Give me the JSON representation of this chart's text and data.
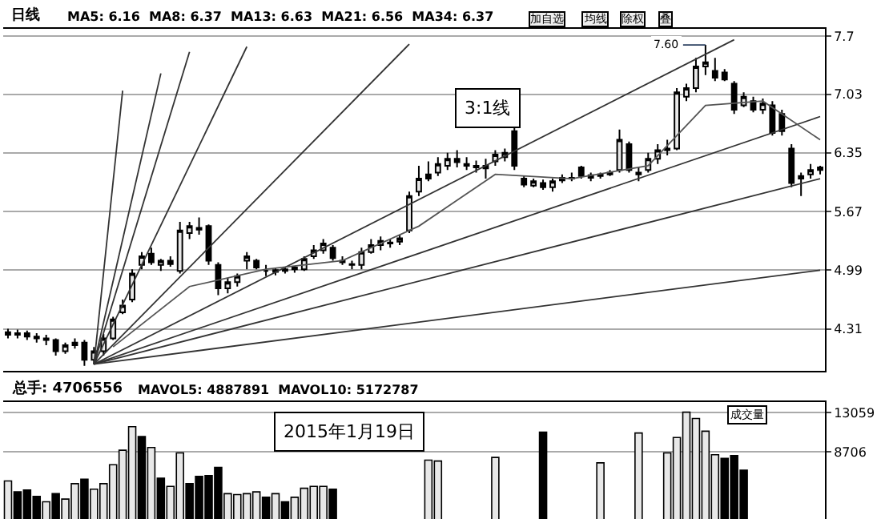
{
  "chart_data": [
    {
      "type": "candlestick",
      "title": "日线",
      "subtitle": "MA5: 6.16  MA8: 6.37  MA13: 6.63  MA21: 6.56  MA34: 6.37",
      "categories": [
        null,
        null,
        null,
        null,
        null,
        null,
        null,
        null,
        null,
        null,
        null,
        null,
        null,
        null,
        null,
        null,
        null,
        null,
        null,
        null,
        null,
        null,
        null,
        null,
        null,
        null,
        null,
        null,
        null,
        null,
        null,
        null,
        null,
        null,
        null,
        null,
        null,
        null,
        null,
        null,
        null,
        null,
        null,
        null,
        null,
        null,
        null,
        null,
        null,
        null,
        null,
        null,
        null,
        null,
        null,
        null,
        null,
        null,
        null,
        null,
        null,
        null,
        null,
        null,
        null,
        null,
        null,
        null,
        null,
        null,
        null,
        null,
        null,
        null,
        null,
        null,
        null,
        null,
        null,
        null,
        null,
        null,
        null,
        null,
        null,
        null
      ],
      "ohlc": [
        [
          4.27,
          4.31,
          4.2,
          4.24
        ],
        [
          4.24,
          4.3,
          4.2,
          4.26
        ],
        [
          4.26,
          4.29,
          4.18,
          4.22
        ],
        [
          4.22,
          4.26,
          4.15,
          4.2
        ],
        [
          4.2,
          4.24,
          4.12,
          4.18
        ],
        [
          4.18,
          4.2,
          4.0,
          4.05
        ],
        [
          4.05,
          4.15,
          4.02,
          4.12
        ],
        [
          4.12,
          4.2,
          4.08,
          4.15
        ],
        [
          4.15,
          4.18,
          3.88,
          3.95
        ],
        [
          3.95,
          4.1,
          3.9,
          4.05
        ],
        [
          4.05,
          4.25,
          4.0,
          4.2
        ],
        [
          4.2,
          4.45,
          4.18,
          4.42
        ],
        [
          4.5,
          4.65,
          4.48,
          4.58
        ],
        [
          4.65,
          5.0,
          4.62,
          4.95
        ],
        [
          5.05,
          5.2,
          5.0,
          5.15
        ],
        [
          5.18,
          5.25,
          5.05,
          5.08
        ],
        [
          5.05,
          5.12,
          4.98,
          5.1
        ],
        [
          5.1,
          5.15,
          5.03,
          5.06
        ],
        [
          4.98,
          5.55,
          4.95,
          5.45
        ],
        [
          5.42,
          5.55,
          5.35,
          5.5
        ],
        [
          5.48,
          5.6,
          5.4,
          5.46
        ],
        [
          5.5,
          5.52,
          5.05,
          5.1
        ],
        [
          5.05,
          5.08,
          4.7,
          4.78
        ],
        [
          4.78,
          4.9,
          4.72,
          4.85
        ],
        [
          4.85,
          4.95,
          4.8,
          4.92
        ],
        [
          5.1,
          5.2,
          5.0,
          5.15
        ],
        [
          5.1,
          5.12,
          5.0,
          5.02
        ],
        [
          4.98,
          5.05,
          4.92,
          4.98
        ],
        [
          4.97,
          5.02,
          4.93,
          4.99
        ],
        [
          4.98,
          5.03,
          4.95,
          5.0
        ],
        [
          5.0,
          5.04,
          4.96,
          5.02
        ],
        [
          5.0,
          5.15,
          4.98,
          5.12
        ],
        [
          5.15,
          5.28,
          5.12,
          5.22
        ],
        [
          5.22,
          5.35,
          5.18,
          5.3
        ],
        [
          5.25,
          5.28,
          5.1,
          5.13
        ],
        [
          5.1,
          5.15,
          5.05,
          5.08
        ],
        [
          5.05,
          5.1,
          5.0,
          5.06
        ],
        [
          5.05,
          5.25,
          5.0,
          5.2
        ],
        [
          5.2,
          5.35,
          5.18,
          5.28
        ],
        [
          5.28,
          5.38,
          5.22,
          5.33
        ],
        [
          5.3,
          5.35,
          5.25,
          5.31
        ],
        [
          5.32,
          5.4,
          5.28,
          5.36
        ],
        [
          5.45,
          5.9,
          5.42,
          5.85
        ],
        [
          5.9,
          6.2,
          5.85,
          6.05
        ],
        [
          6.1,
          6.25,
          6.02,
          6.05
        ],
        [
          6.12,
          6.3,
          6.08,
          6.22
        ],
        [
          6.2,
          6.35,
          6.15,
          6.28
        ],
        [
          6.28,
          6.38,
          6.18,
          6.24
        ],
        [
          6.2,
          6.3,
          6.15,
          6.22
        ],
        [
          6.18,
          6.26,
          6.12,
          6.2
        ],
        [
          6.2,
          6.28,
          6.05,
          6.17
        ],
        [
          6.25,
          6.38,
          6.2,
          6.33
        ],
        [
          6.3,
          6.4,
          6.25,
          6.35
        ],
        [
          6.6,
          6.66,
          6.15,
          6.2
        ],
        [
          6.05,
          6.08,
          5.95,
          5.98
        ],
        [
          5.97,
          6.05,
          5.95,
          6.02
        ],
        [
          6.0,
          6.04,
          5.92,
          5.95
        ],
        [
          5.95,
          6.05,
          5.9,
          6.02
        ],
        [
          6.03,
          6.1,
          6.0,
          6.06
        ],
        [
          6.06,
          6.12,
          6.02,
          6.05
        ],
        [
          6.18,
          6.2,
          6.05,
          6.08
        ],
        [
          6.06,
          6.12,
          6.02,
          6.09
        ],
        [
          6.08,
          6.12,
          6.05,
          6.1
        ],
        [
          6.1,
          6.15,
          6.08,
          6.12
        ],
        [
          6.15,
          6.62,
          6.12,
          6.5
        ],
        [
          6.45,
          6.48,
          6.12,
          6.15
        ],
        [
          6.1,
          6.18,
          6.02,
          6.12
        ],
        [
          6.15,
          6.35,
          6.12,
          6.28
        ],
        [
          6.28,
          6.45,
          6.22,
          6.38
        ],
        [
          6.38,
          6.5,
          6.32,
          6.4
        ],
        [
          6.4,
          7.1,
          6.38,
          7.05
        ],
        [
          7.0,
          7.15,
          6.95,
          7.1
        ],
        [
          7.1,
          7.45,
          7.05,
          7.35
        ],
        [
          7.35,
          7.6,
          7.25,
          7.4
        ],
        [
          7.3,
          7.45,
          7.18,
          7.22
        ],
        [
          7.28,
          7.32,
          7.18,
          7.2
        ],
        [
          7.15,
          7.18,
          6.8,
          6.85
        ],
        [
          6.9,
          7.05,
          6.88,
          7.0
        ],
        [
          6.95,
          7.0,
          6.82,
          6.85
        ],
        [
          6.85,
          6.98,
          6.8,
          6.92
        ],
        [
          6.9,
          6.95,
          6.55,
          6.58
        ],
        [
          6.8,
          6.85,
          6.55,
          6.6
        ],
        [
          6.4,
          6.45,
          5.95,
          6.0
        ],
        [
          6.05,
          6.12,
          5.85,
          6.08
        ],
        [
          6.1,
          6.22,
          6.05,
          6.15
        ],
        [
          6.15,
          6.2,
          6.1,
          6.18
        ]
      ],
      "series": [
        {
          "type": "line",
          "color": "#333333",
          "values": [
            null,
            null,
            null,
            null,
            null,
            null,
            null,
            null,
            null,
            3.9,
            null,
            null,
            7.07,
            null,
            null,
            null,
            null,
            null,
            null,
            null,
            null,
            null,
            null,
            null,
            null,
            null,
            null,
            null,
            null,
            null,
            null,
            null,
            null,
            null,
            null,
            null,
            null,
            null,
            null,
            null,
            null,
            null,
            null,
            null,
            null,
            null,
            null,
            null,
            null,
            null,
            null,
            null,
            null,
            null,
            null,
            null,
            null,
            null,
            null,
            null,
            null,
            null,
            null,
            null,
            null,
            null,
            null,
            null,
            null,
            null,
            null,
            null,
            null,
            null,
            null,
            null,
            null,
            null,
            null,
            null,
            null,
            null,
            null,
            null,
            null,
            null
          ]
        },
        {
          "type": "line",
          "color": "#333333",
          "values": [
            null,
            null,
            null,
            null,
            null,
            null,
            null,
            null,
            null,
            3.9,
            null,
            null,
            null,
            null,
            null,
            null,
            7.27,
            null,
            null,
            null,
            null,
            null,
            null,
            null,
            null,
            null,
            null,
            null,
            null,
            null,
            null,
            null,
            null,
            null,
            null,
            null,
            null,
            null,
            null,
            null,
            null,
            null,
            null,
            null,
            null,
            null,
            null,
            null,
            null,
            null,
            null,
            null,
            null,
            null,
            null,
            null,
            null,
            null,
            null,
            null,
            null,
            null,
            null,
            null,
            null,
            null,
            null,
            null,
            null,
            null,
            null,
            null,
            null,
            null,
            null,
            null,
            null,
            null,
            null,
            null,
            null,
            null,
            null,
            null,
            null,
            null
          ]
        },
        {
          "type": "line",
          "color": "#333333",
          "values": [
            null,
            null,
            null,
            null,
            null,
            null,
            null,
            null,
            null,
            3.9,
            null,
            null,
            null,
            null,
            null,
            null,
            null,
            null,
            null,
            7.52,
            null,
            null,
            null,
            null,
            null,
            null,
            null,
            null,
            null,
            null,
            null,
            null,
            null,
            null,
            null,
            null,
            null,
            null,
            null,
            null,
            null,
            null,
            null,
            null,
            null,
            null,
            null,
            null,
            null,
            null,
            null,
            null,
            null,
            null,
            null,
            null,
            null,
            null,
            null,
            null,
            null,
            null,
            null,
            null,
            null,
            null,
            null,
            null,
            null,
            null,
            null,
            null,
            null,
            null,
            null,
            null,
            null,
            null,
            null,
            null,
            null,
            null,
            null,
            null,
            null,
            null
          ]
        },
        {
          "type": "line",
          "color": "#333333",
          "values": [
            null,
            null,
            null,
            null,
            null,
            null,
            null,
            null,
            null,
            3.9,
            null,
            null,
            null,
            null,
            null,
            null,
            null,
            null,
            null,
            null,
            null,
            null,
            null,
            null,
            null,
            7.58,
            null,
            null,
            null,
            null,
            null,
            null,
            null,
            null,
            null,
            null,
            null,
            null,
            null,
            null,
            null,
            null,
            null,
            null,
            null,
            null,
            null,
            null,
            null,
            null,
            null,
            null,
            null,
            null,
            null,
            null,
            null,
            null,
            null,
            null,
            null,
            null,
            null,
            null,
            null,
            null,
            null,
            null,
            null,
            null,
            null,
            null,
            null,
            null,
            null,
            null,
            null,
            null,
            null,
            null,
            null,
            null,
            null,
            null,
            null,
            null
          ]
        },
        {
          "type": "line",
          "color": "#333333",
          "values": [
            null,
            null,
            null,
            null,
            null,
            null,
            null,
            null,
            null,
            3.9,
            null,
            null,
            null,
            null,
            null,
            null,
            null,
            null,
            null,
            null,
            null,
            null,
            null,
            null,
            null,
            null,
            null,
            null,
            null,
            null,
            null,
            null,
            null,
            null,
            null,
            null,
            null,
            null,
            null,
            null,
            null,
            null,
            7.61,
            null,
            null,
            null,
            null,
            null,
            null,
            null,
            null,
            null,
            null,
            null,
            null,
            null,
            null,
            null,
            null,
            null,
            null,
            null,
            null,
            null,
            null,
            null,
            null,
            null,
            null,
            null,
            null,
            null,
            null,
            null,
            null,
            null,
            null,
            null,
            null,
            null,
            null,
            null,
            null,
            null,
            null,
            null
          ]
        },
        {
          "type": "line",
          "color": "#333333",
          "values": [
            null,
            null,
            null,
            null,
            null,
            null,
            null,
            null,
            null,
            3.9,
            null,
            null,
            null,
            null,
            null,
            null,
            null,
            null,
            null,
            null,
            null,
            null,
            null,
            null,
            null,
            null,
            null,
            null,
            null,
            null,
            null,
            null,
            null,
            null,
            null,
            null,
            null,
            null,
            null,
            null,
            null,
            null,
            null,
            null,
            null,
            null,
            null,
            null,
            null,
            null,
            null,
            null,
            null,
            null,
            null,
            null,
            null,
            null,
            null,
            null,
            null,
            null,
            null,
            null,
            null,
            null,
            null,
            null,
            null,
            null,
            null,
            null,
            null,
            null,
            null,
            null,
            7.66,
            null,
            null,
            null,
            null,
            null,
            null,
            null,
            null,
            null
          ]
        },
        {
          "type": "line",
          "color": "#333333",
          "values": [
            null,
            null,
            null,
            null,
            null,
            null,
            null,
            null,
            null,
            3.9,
            null,
            null,
            null,
            null,
            null,
            null,
            null,
            null,
            null,
            null,
            null,
            null,
            null,
            null,
            null,
            null,
            null,
            null,
            null,
            null,
            null,
            null,
            null,
            null,
            null,
            null,
            null,
            null,
            null,
            null,
            null,
            null,
            null,
            null,
            null,
            null,
            null,
            null,
            null,
            null,
            null,
            null,
            null,
            null,
            null,
            null,
            null,
            null,
            null,
            null,
            null,
            null,
            null,
            null,
            null,
            null,
            null,
            null,
            null,
            null,
            null,
            null,
            null,
            null,
            null,
            null,
            null,
            null,
            null,
            null,
            null,
            null,
            null,
            null,
            null,
            6.77
          ]
        },
        {
          "type": "line",
          "color": "#333333",
          "values": [
            null,
            null,
            null,
            null,
            null,
            null,
            null,
            null,
            null,
            3.9,
            null,
            null,
            null,
            null,
            null,
            null,
            null,
            null,
            null,
            null,
            null,
            null,
            null,
            null,
            null,
            null,
            null,
            null,
            null,
            null,
            null,
            null,
            null,
            null,
            null,
            null,
            null,
            null,
            null,
            null,
            null,
            null,
            null,
            null,
            null,
            null,
            null,
            null,
            null,
            null,
            null,
            null,
            null,
            null,
            null,
            null,
            null,
            null,
            null,
            null,
            null,
            null,
            null,
            null,
            null,
            null,
            null,
            null,
            null,
            null,
            null,
            null,
            null,
            null,
            null,
            null,
            null,
            null,
            null,
            null,
            null,
            null,
            null,
            null,
            null,
            6.05
          ]
        },
        {
          "type": "line",
          "color": "#333333",
          "values": [
            null,
            null,
            null,
            null,
            null,
            null,
            null,
            null,
            null,
            3.9,
            null,
            null,
            null,
            null,
            null,
            null,
            null,
            null,
            null,
            null,
            null,
            null,
            null,
            null,
            null,
            null,
            null,
            null,
            null,
            null,
            null,
            null,
            null,
            null,
            null,
            null,
            null,
            null,
            null,
            null,
            null,
            null,
            null,
            null,
            null,
            null,
            null,
            null,
            null,
            null,
            null,
            null,
            null,
            null,
            null,
            null,
            null,
            null,
            null,
            null,
            null,
            null,
            null,
            null,
            null,
            null,
            null,
            null,
            null,
            null,
            null,
            null,
            null,
            null,
            null,
            null,
            null,
            null,
            null,
            null,
            null,
            null,
            null,
            null,
            null,
            4.99
          ]
        },
        {
          "type": "line",
          "color": "#555555",
          "values": [
            null,
            null,
            null,
            null,
            null,
            null,
            null,
            null,
            null,
            null,
            null,
            4.1,
            null,
            null,
            null,
            null,
            null,
            null,
            null,
            4.8,
            null,
            null,
            null,
            null,
            null,
            null,
            null,
            5.0,
            null,
            null,
            null,
            null,
            null,
            null,
            null,
            5.1,
            null,
            null,
            null,
            null,
            null,
            null,
            null,
            5.5,
            null,
            null,
            null,
            null,
            null,
            null,
            null,
            6.1,
            null,
            null,
            null,
            null,
            null,
            null,
            null,
            6.05,
            null,
            null,
            null,
            null,
            null,
            null,
            null,
            6.2,
            null,
            null,
            null,
            null,
            null,
            6.9,
            null,
            null,
            null,
            null,
            null,
            6.95,
            null,
            null,
            null,
            null,
            null,
            6.5
          ]
        }
      ],
      "ylim": [
        3.82,
        7.79
      ],
      "yticks": [
        4.31,
        4.99,
        5.67,
        6.35,
        7.03,
        7.7
      ],
      "tick_labels": "y",
      "grid": "y",
      "annotations": [
        "加自选",
        "均线",
        "除权",
        "叠",
        "3:1线",
        {
          "text": "7.60",
          "y": 7.6
        }
      ]
    },
    {
      "type": "bar",
      "title": "总手: 4706556",
      "subtitle": "MAVOL5: 4887891  MAVOL10: 5172787",
      "categories": [
        null,
        null,
        null,
        null,
        null,
        null,
        null,
        null,
        null,
        null,
        null,
        null,
        null,
        null,
        null,
        null,
        null,
        null,
        null,
        null,
        null,
        null,
        null,
        null,
        null,
        null,
        null,
        null,
        null,
        null,
        null,
        null,
        null,
        null,
        null,
        null,
        null,
        null,
        null,
        null,
        null,
        null,
        null,
        null,
        null,
        null,
        null,
        null,
        null,
        null,
        null,
        null,
        null,
        null,
        null,
        null,
        null,
        null,
        null,
        null,
        null,
        null,
        null,
        null,
        null,
        null,
        null,
        null,
        null,
        null,
        null,
        null,
        null,
        null,
        null,
        null,
        null,
        null,
        null,
        null,
        null,
        null,
        null,
        null,
        null,
        null
      ],
      "values": [
        5500,
        4300,
        4500,
        3800,
        3200,
        4100,
        3500,
        5200,
        5700,
        4600,
        5200,
        7300,
        8900,
        11500,
        10400,
        9200,
        5800,
        4900,
        8600,
        5200,
        6000,
        6100,
        7000,
        4100,
        4000,
        4100,
        4300,
        3700,
        4100,
        3200,
        3700,
        4700,
        4900,
        4900,
        4600,
        null,
        null,
        null,
        null,
        null,
        null,
        null,
        null,
        null,
        7800,
        7700,
        null,
        null,
        null,
        null,
        null,
        8100,
        null,
        null,
        null,
        null,
        10900,
        null,
        null,
        null,
        null,
        null,
        7500,
        null,
        null,
        null,
        10800,
        null,
        null,
        8600,
        10300,
        13100,
        12400,
        11000,
        8400,
        8000,
        8300,
        6700,
        null,
        null,
        null,
        null,
        null,
        null,
        null,
        null
      ],
      "colors": [
        "#e8e8e8",
        "#000000",
        "#000000",
        "#000000",
        "#e8e8e8",
        "#000000",
        "#e8e8e8",
        "#e8e8e8",
        "#000000",
        "#e8e8e8",
        "#e8e8e8",
        "#e8e8e8",
        "#e8e8e8",
        "#e8e8e8",
        "#000000",
        "#e8e8e8",
        "#000000",
        "#e8e8e8",
        "#e8e8e8",
        "#000000",
        "#000000",
        "#000000",
        "#000000",
        "#e8e8e8",
        "#e8e8e8",
        "#e8e8e8",
        "#e8e8e8",
        "#000000",
        "#e8e8e8",
        "#000000",
        "#e8e8e8",
        "#e8e8e8",
        "#e8e8e8",
        "#e8e8e8",
        "#000000",
        "#e8e8e8",
        "#e8e8e8",
        "#e8e8e8",
        "#e8e8e8",
        "#e8e8e8",
        "#e8e8e8",
        "#e8e8e8",
        "#e8e8e8",
        "#e8e8e8",
        "#e8e8e8",
        "#e8e8e8",
        "#e8e8e8",
        "#e8e8e8",
        "#e8e8e8",
        "#e8e8e8",
        "#e8e8e8",
        "#e8e8e8",
        "#e8e8e8",
        "#e8e8e8",
        "#e8e8e8",
        "#e8e8e8",
        "#000000",
        "#e8e8e8",
        "#e8e8e8",
        "#e8e8e8",
        "#e8e8e8",
        "#e8e8e8",
        "#e8e8e8",
        "#e8e8e8",
        "#e8e8e8",
        "#e8e8e8",
        "#e8e8e8",
        "#e8e8e8",
        "#e8e8e8",
        "#e8e8e8",
        "#e8e8e8",
        "#e8e8e8",
        "#e8e8e8",
        "#e8e8e8",
        "#e8e8e8",
        "#000000",
        "#000000",
        "#000000",
        "#e8e8e8",
        "#e8e8e8",
        "#e8e8e8",
        "#e8e8e8",
        "#e8e8e8",
        "#e8e8e8",
        "#e8e8e8",
        "#e8e8e8"
      ],
      "ylim": [
        1300,
        14200
      ],
      "yticks": [
        8706,
        13059
      ],
      "tick_labels": "y",
      "grid": "y",
      "annotations": [
        "成交量",
        "2015年1月19日"
      ]
    }
  ]
}
